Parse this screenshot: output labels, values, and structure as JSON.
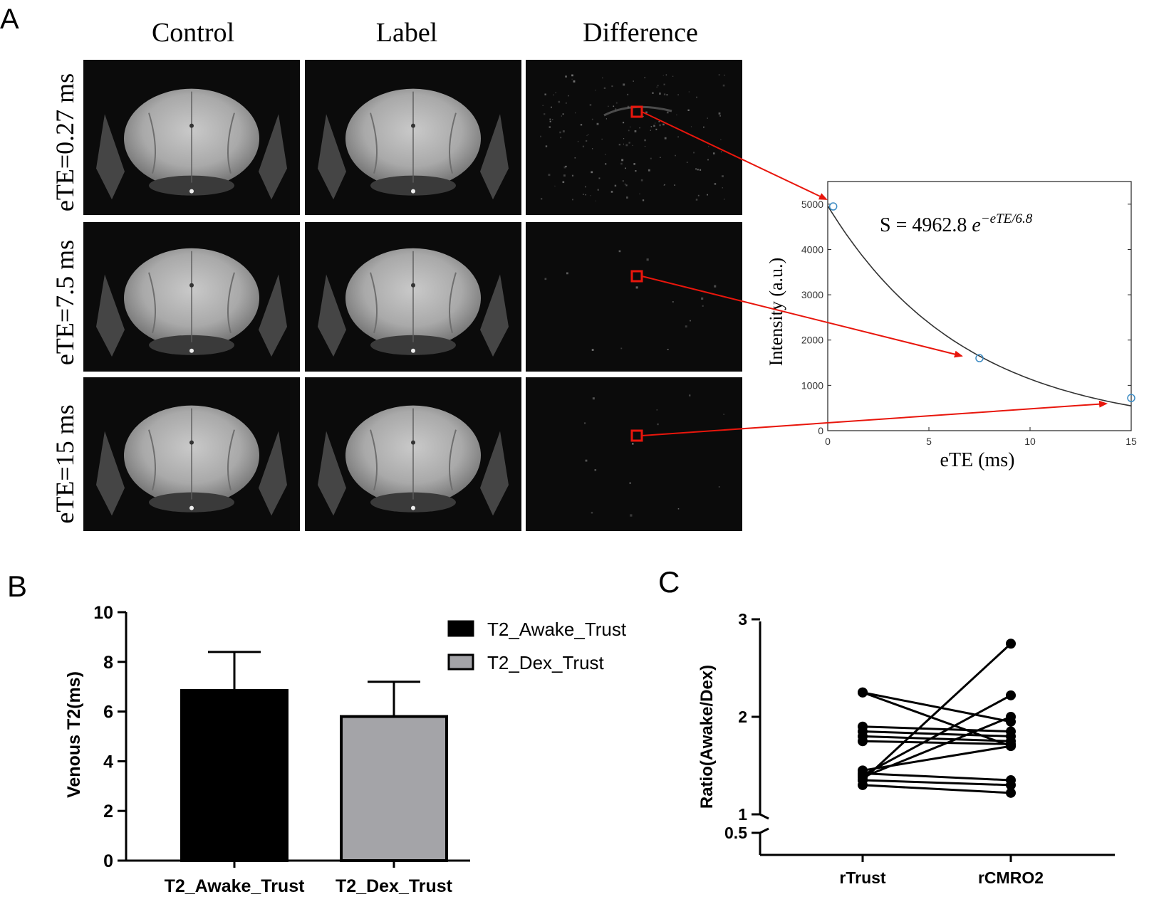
{
  "panel_a": {
    "letter": "A",
    "column_titles": [
      "Control",
      "Label",
      "Difference"
    ],
    "row_labels": [
      "eTE=0.27 ms",
      "eTE=7.5 ms",
      "eTE=15 ms"
    ],
    "inset": {
      "equation_prefix": "S = 4962.8 ",
      "equation_base": "e",
      "equation_exp": "−eTE/6.8",
      "xlabel": "eTE (ms)",
      "ylabel": "Intensity (a.u.)",
      "xticks": [
        "0",
        "5",
        "10",
        "15"
      ],
      "yticks": [
        "0",
        "1000",
        "2000",
        "3000",
        "4000",
        "5000"
      ]
    }
  },
  "panel_b": {
    "letter": "B"
  },
  "panel_c": {
    "letter": "C"
  },
  "chart_data": [
    {
      "id": "decay-fit",
      "type": "scatter",
      "title": "",
      "xlabel": "eTE (ms)",
      "ylabel": "Intensity (a.u.)",
      "xlim": [
        0,
        15
      ],
      "ylim": [
        0,
        5500
      ],
      "points": [
        {
          "x": 0.27,
          "y": 4950
        },
        {
          "x": 7.5,
          "y": 1600
        },
        {
          "x": 15,
          "y": 720
        }
      ],
      "fit": {
        "amplitude": 4962.8,
        "t2": 6.8
      }
    },
    {
      "id": "venous-t2",
      "type": "bar",
      "categories": [
        "T2_Awake_Trust",
        "T2_Dex_Trust"
      ],
      "values": [
        6.85,
        5.8
      ],
      "errors": [
        1.55,
        1.4
      ],
      "colors": [
        "#000000",
        "#a4a4a8"
      ],
      "legend": [
        "T2_Awake_Trust",
        "T2_Dex_Trust"
      ],
      "ylabel": "Venous T2(ms)",
      "ylim": [
        0,
        10
      ],
      "yticks": [
        "0",
        "2",
        "4",
        "6",
        "8",
        "10"
      ]
    },
    {
      "id": "ratio",
      "type": "line",
      "categories": [
        "rTrust",
        "rCMRO2"
      ],
      "ylabel": "Ratio(Awake/Dex)",
      "yticks": [
        "0.5",
        "1",
        "2",
        "3"
      ],
      "ylim": [
        0.5,
        3
      ],
      "pairs": [
        [
          2.25,
          1.7
        ],
        [
          2.25,
          1.95
        ],
        [
          1.9,
          1.85
        ],
        [
          1.85,
          1.8
        ],
        [
          1.8,
          1.75
        ],
        [
          1.75,
          1.72
        ],
        [
          1.45,
          1.7
        ],
        [
          1.42,
          1.35
        ],
        [
          1.4,
          2.22
        ],
        [
          1.38,
          2.0
        ],
        [
          1.35,
          1.3
        ],
        [
          1.35,
          2.75
        ],
        [
          1.3,
          1.22
        ]
      ]
    }
  ]
}
